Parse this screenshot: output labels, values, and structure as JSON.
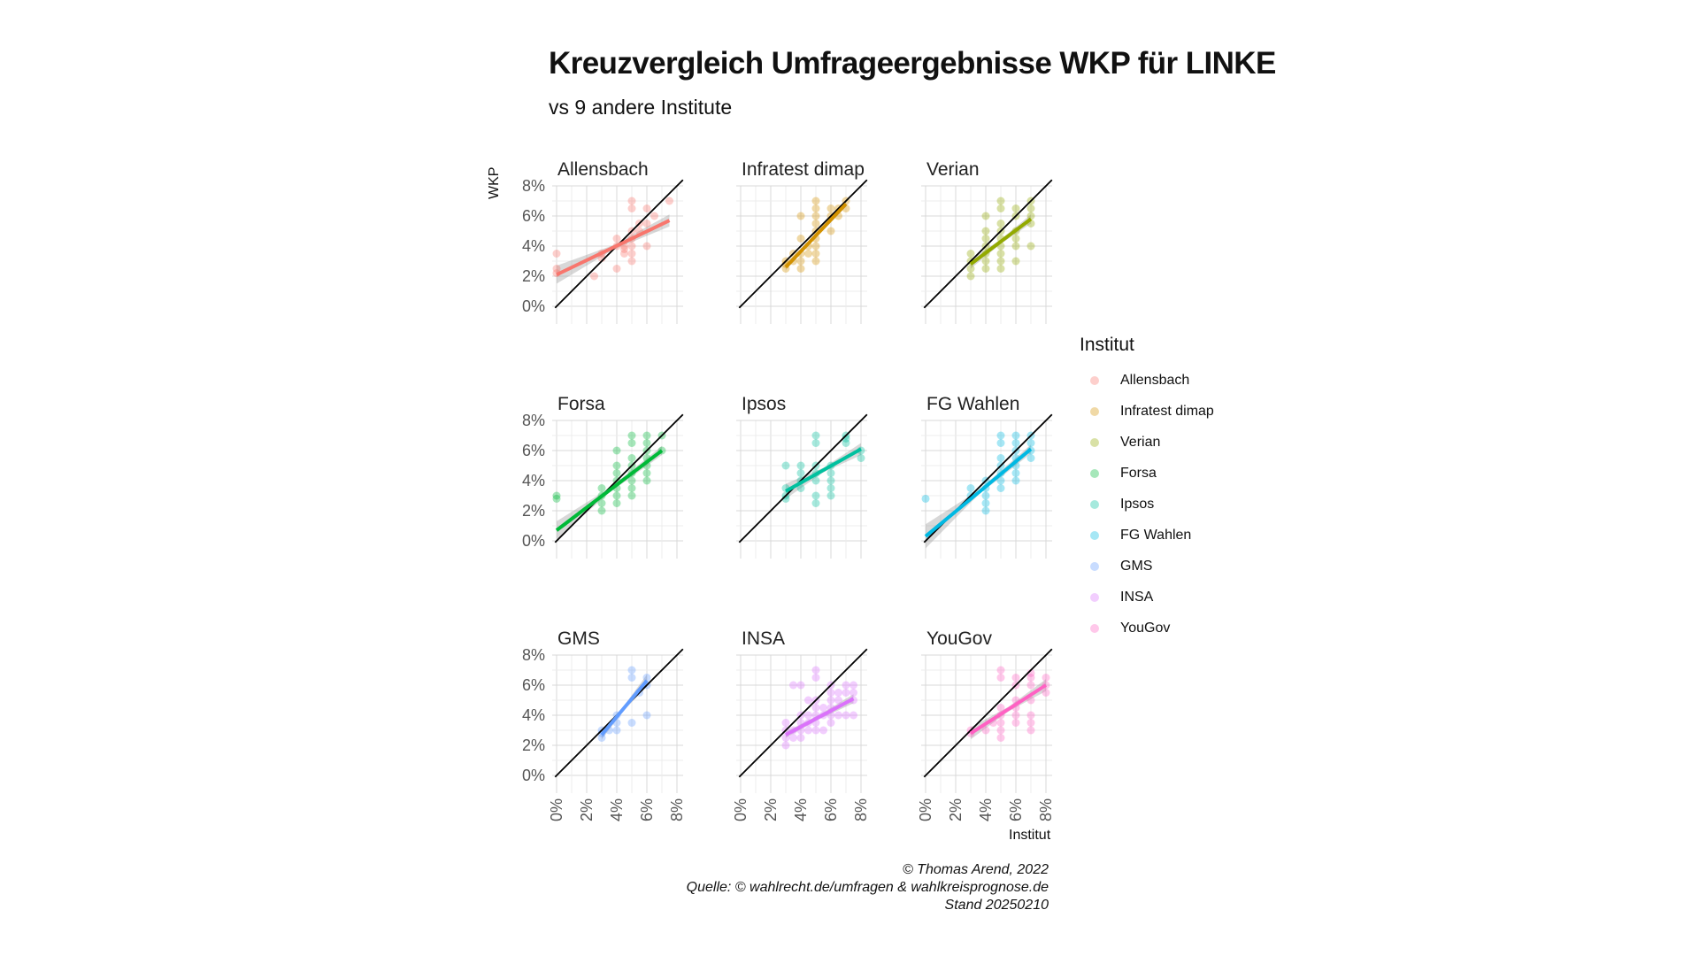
{
  "title": "Kreuzvergleich Umfrageergebnisse WKP für LINKE",
  "subtitle": "vs 9 andere Institute",
  "y_axis_label": "WKP",
  "x_axis_label": "Institut",
  "legend_title": "Institut",
  "caption": {
    "line1": "© Thomas Arend, 2022",
    "line2": "Quelle: © wahlrecht.de/umfragen & wahlkreisprognose.de",
    "line3": "Stand 20250210"
  },
  "chart_data": {
    "type": "scatter",
    "layout": "faceted 3x3",
    "xlim": [
      0,
      8
    ],
    "ylim": [
      0,
      8
    ],
    "x_ticks": [
      "0%",
      "2%",
      "4%",
      "6%",
      "8%"
    ],
    "y_ticks": [
      "0%",
      "2%",
      "4%",
      "6%",
      "8%"
    ],
    "reference_line": "y = x",
    "grid": true,
    "legend_position": "right",
    "facets": [
      {
        "name": "Allensbach",
        "color": "#F8766D",
        "points": [
          [
            0,
            3.5
          ],
          [
            0,
            2.5
          ],
          [
            0,
            2.2
          ],
          [
            3,
            3.5
          ],
          [
            3,
            3.2
          ],
          [
            2.5,
            2
          ],
          [
            4,
            4.5
          ],
          [
            4,
            4
          ],
          [
            4,
            2.5
          ],
          [
            4.5,
            4
          ],
          [
            4.5,
            3.5
          ],
          [
            5,
            3.5
          ],
          [
            5,
            3
          ],
          [
            5,
            4
          ],
          [
            5,
            4.5
          ],
          [
            5,
            6.5
          ],
          [
            5,
            7
          ],
          [
            5.5,
            5
          ],
          [
            5.5,
            5.5
          ],
          [
            6,
            6.5
          ],
          [
            6,
            4
          ],
          [
            6,
            5.5
          ],
          [
            6.5,
            6
          ],
          [
            7.5,
            7
          ],
          [
            4.5,
            3.8
          ],
          [
            5,
            5
          ]
        ],
        "fit": [
          [
            0,
            2.1
          ],
          [
            7.5,
            5.7
          ]
        ],
        "band": [
          0.6,
          0.4
        ]
      },
      {
        "name": "Infratest dimap",
        "color": "#D39200",
        "points": [
          [
            3,
            2.5
          ],
          [
            3,
            3
          ],
          [
            3,
            2.8
          ],
          [
            3.5,
            3
          ],
          [
            3.5,
            3.5
          ],
          [
            4,
            2.5
          ],
          [
            4,
            3
          ],
          [
            4,
            3.5
          ],
          [
            4,
            4.5
          ],
          [
            4,
            6
          ],
          [
            4.5,
            3.5
          ],
          [
            4.5,
            4
          ],
          [
            5,
            3
          ],
          [
            5,
            3.5
          ],
          [
            5,
            4
          ],
          [
            5,
            4.5
          ],
          [
            5,
            5
          ],
          [
            5,
            5.5
          ],
          [
            5,
            6
          ],
          [
            5,
            6.5
          ],
          [
            5,
            7
          ],
          [
            6,
            6
          ],
          [
            6,
            6.5
          ],
          [
            6,
            5
          ],
          [
            6.5,
            6.5
          ],
          [
            6.5,
            6
          ],
          [
            7,
            7
          ],
          [
            7,
            6.5
          ]
        ],
        "fit": [
          [
            3,
            2.6
          ],
          [
            7,
            6.8
          ]
        ],
        "band": [
          0.2,
          0.2
        ]
      },
      {
        "name": "Verian",
        "color": "#93AA00",
        "points": [
          [
            3,
            2
          ],
          [
            3,
            2.5
          ],
          [
            3,
            3
          ],
          [
            3,
            3.5
          ],
          [
            4,
            2.5
          ],
          [
            4,
            3
          ],
          [
            4,
            3.5
          ],
          [
            4,
            4
          ],
          [
            4,
            4.5
          ],
          [
            4,
            5
          ],
          [
            4,
            6
          ],
          [
            5,
            2.5
          ],
          [
            5,
            3
          ],
          [
            5,
            3.5
          ],
          [
            5,
            4
          ],
          [
            5,
            4.5
          ],
          [
            5,
            5
          ],
          [
            5,
            5.5
          ],
          [
            5,
            6.5
          ],
          [
            5,
            7
          ],
          [
            6,
            3
          ],
          [
            6,
            4
          ],
          [
            6,
            4.5
          ],
          [
            6,
            5
          ],
          [
            6,
            6
          ],
          [
            6,
            6.5
          ],
          [
            7,
            4
          ],
          [
            7,
            5.5
          ],
          [
            7,
            6
          ],
          [
            7,
            6.5
          ],
          [
            7,
            7
          ]
        ],
        "fit": [
          [
            3,
            2.8
          ],
          [
            7,
            5.8
          ]
        ],
        "band": [
          0.3,
          0.3
        ]
      },
      {
        "name": "Forsa",
        "color": "#00BA38",
        "points": [
          [
            0,
            3
          ],
          [
            0,
            2.8
          ],
          [
            3,
            2
          ],
          [
            3,
            2.5
          ],
          [
            3,
            3
          ],
          [
            3,
            3.5
          ],
          [
            4,
            2.5
          ],
          [
            4,
            3
          ],
          [
            4,
            3.5
          ],
          [
            4,
            4
          ],
          [
            4,
            4.5
          ],
          [
            4,
            5
          ],
          [
            4,
            6
          ],
          [
            5,
            3
          ],
          [
            5,
            3.5
          ],
          [
            5,
            4
          ],
          [
            5,
            4.5
          ],
          [
            5,
            5
          ],
          [
            5,
            5.5
          ],
          [
            5,
            6.5
          ],
          [
            5,
            7
          ],
          [
            6,
            4
          ],
          [
            6,
            4.5
          ],
          [
            6,
            5
          ],
          [
            6,
            5.5
          ],
          [
            6,
            6
          ],
          [
            6,
            6.5
          ],
          [
            6,
            7
          ],
          [
            7,
            6
          ],
          [
            7,
            7
          ]
        ],
        "fit": [
          [
            0,
            0.7
          ],
          [
            7,
            6
          ]
        ],
        "band": [
          0.6,
          0.3
        ]
      },
      {
        "name": "Ipsos",
        "color": "#00C19F",
        "points": [
          [
            3,
            3
          ],
          [
            3,
            2.8
          ],
          [
            3,
            3.5
          ],
          [
            3,
            5
          ],
          [
            4,
            3.5
          ],
          [
            4,
            4
          ],
          [
            4,
            4.5
          ],
          [
            4,
            5
          ],
          [
            5,
            2.5
          ],
          [
            5,
            3
          ],
          [
            5,
            4
          ],
          [
            5,
            4.5
          ],
          [
            5,
            5
          ],
          [
            5,
            6.5
          ],
          [
            5,
            7
          ],
          [
            6,
            3
          ],
          [
            6,
            3.5
          ],
          [
            6,
            4
          ],
          [
            6,
            4.5
          ],
          [
            6,
            5
          ],
          [
            7,
            6.5
          ],
          [
            7,
            7
          ],
          [
            7,
            6.8
          ],
          [
            8,
            5.5
          ],
          [
            8,
            6
          ]
        ],
        "fit": [
          [
            3,
            3.3
          ],
          [
            8,
            6.1
          ]
        ],
        "band": [
          0.5,
          0.4
        ]
      },
      {
        "name": "FG Wahlen",
        "color": "#00B9E3",
        "points": [
          [
            0,
            2.8
          ],
          [
            3,
            3
          ],
          [
            3,
            3.5
          ],
          [
            4,
            2
          ],
          [
            4,
            2.5
          ],
          [
            4,
            3
          ],
          [
            4,
            3.5
          ],
          [
            4,
            4
          ],
          [
            5,
            3.5
          ],
          [
            5,
            4
          ],
          [
            5,
            4.5
          ],
          [
            5,
            5
          ],
          [
            5,
            5.5
          ],
          [
            5,
            6.5
          ],
          [
            5,
            7
          ],
          [
            6,
            4
          ],
          [
            6,
            4.5
          ],
          [
            6,
            5
          ],
          [
            6,
            5.5
          ],
          [
            6,
            6
          ],
          [
            6,
            6.5
          ],
          [
            6,
            7
          ],
          [
            7,
            5.5
          ],
          [
            7,
            6
          ],
          [
            7,
            6.5
          ],
          [
            7,
            7
          ]
        ],
        "fit": [
          [
            0,
            0.3
          ],
          [
            7,
            6.1
          ]
        ],
        "band": [
          0.8,
          0.3
        ]
      },
      {
        "name": "GMS",
        "color": "#619CFF",
        "points": [
          [
            3,
            2.5
          ],
          [
            3,
            2.8
          ],
          [
            3,
            3
          ],
          [
            3.5,
            3
          ],
          [
            4,
            3
          ],
          [
            4,
            3.5
          ],
          [
            4,
            4
          ],
          [
            5,
            3.5
          ],
          [
            5,
            6.5
          ],
          [
            5,
            7
          ],
          [
            6,
            4
          ],
          [
            6,
            6
          ],
          [
            6,
            6.5
          ],
          [
            5.5,
            5.5
          ]
        ],
        "fit": [
          [
            3,
            2.7
          ],
          [
            6,
            6.3
          ]
        ],
        "band": [
          0.3,
          0.4
        ]
      },
      {
        "name": "INSA",
        "color": "#DB72FB",
        "points": [
          [
            3,
            2
          ],
          [
            3,
            2.5
          ],
          [
            3,
            3
          ],
          [
            3,
            3.5
          ],
          [
            3.5,
            2.5
          ],
          [
            3.5,
            3
          ],
          [
            3.5,
            6
          ],
          [
            4,
            2.5
          ],
          [
            4,
            3
          ],
          [
            4,
            3.5
          ],
          [
            4,
            4
          ],
          [
            4,
            6
          ],
          [
            4.5,
            3
          ],
          [
            4.5,
            3.5
          ],
          [
            4.5,
            4
          ],
          [
            4.5,
            5
          ],
          [
            5,
            3
          ],
          [
            5,
            3.5
          ],
          [
            5,
            4
          ],
          [
            5,
            4.5
          ],
          [
            5,
            5
          ],
          [
            5,
            6.5
          ],
          [
            5,
            7
          ],
          [
            5.5,
            3
          ],
          [
            5.5,
            4
          ],
          [
            5.5,
            4.5
          ],
          [
            6,
            3.5
          ],
          [
            6,
            4
          ],
          [
            6,
            4.5
          ],
          [
            6,
            5
          ],
          [
            6,
            5.5
          ],
          [
            6,
            6
          ],
          [
            6.5,
            4
          ],
          [
            6.5,
            5
          ],
          [
            6.5,
            5.5
          ],
          [
            7,
            4
          ],
          [
            7,
            5.5
          ],
          [
            7,
            6
          ],
          [
            7.5,
            4
          ],
          [
            7.5,
            5
          ],
          [
            7.5,
            5.5
          ],
          [
            7.5,
            6
          ]
        ],
        "fit": [
          [
            3,
            2.7
          ],
          [
            7.5,
            5.1
          ]
        ],
        "band": [
          0.2,
          0.3
        ]
      },
      {
        "name": "YouGov",
        "color": "#FF61C3",
        "points": [
          [
            3,
            2.8
          ],
          [
            3,
            3
          ],
          [
            4,
            3
          ],
          [
            4.5,
            3.5
          ],
          [
            5,
            2.5
          ],
          [
            5,
            3
          ],
          [
            5,
            3.5
          ],
          [
            5,
            4
          ],
          [
            5,
            4.5
          ],
          [
            5,
            6.5
          ],
          [
            5,
            7
          ],
          [
            6,
            3.5
          ],
          [
            6,
            4
          ],
          [
            6,
            4.5
          ],
          [
            6,
            5
          ],
          [
            6,
            6
          ],
          [
            6,
            6.5
          ],
          [
            7,
            3
          ],
          [
            7,
            3.5
          ],
          [
            7,
            4
          ],
          [
            7,
            5
          ],
          [
            7,
            6
          ],
          [
            7,
            6.5
          ],
          [
            7,
            6.8
          ],
          [
            8,
            6
          ],
          [
            8,
            6.5
          ],
          [
            8,
            5.5
          ]
        ],
        "fit": [
          [
            3,
            2.8
          ],
          [
            8,
            6
          ]
        ],
        "band": [
          0.4,
          0.4
        ]
      }
    ]
  }
}
